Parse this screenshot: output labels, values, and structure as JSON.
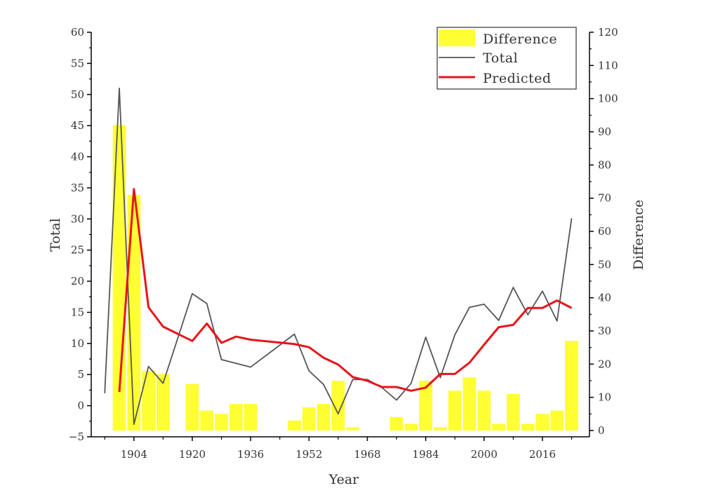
{
  "chart_data": {
    "type": "bar+line",
    "xlabel": "Year",
    "ylabel_left": "Total",
    "ylabel_right": "Difference",
    "xlim": [
      1892.3,
      2028.9
    ],
    "ylim_left": [
      -5,
      60
    ],
    "ylim_right": [
      0,
      120
    ],
    "x_ticks": [
      1904,
      1920,
      1936,
      1952,
      1968,
      1984,
      2000,
      2016
    ],
    "y_left_ticks": [
      -5,
      0,
      5,
      10,
      15,
      20,
      25,
      30,
      35,
      40,
      45,
      50,
      55,
      60
    ],
    "y_right_ticks": [
      0,
      10,
      20,
      30,
      40,
      50,
      60,
      70,
      80,
      90,
      100,
      110,
      120
    ],
    "legend": {
      "placement": "top-right",
      "entries": [
        "Difference",
        "Total",
        "Predicted"
      ]
    },
    "colors": {
      "Difference": "#ffff33",
      "Total": "#555555",
      "Predicted": "#e8141a"
    },
    "series": [
      {
        "name": "Difference",
        "kind": "bar",
        "axis": "right",
        "x": [
          1900,
          1904,
          1908,
          1912,
          1920,
          1924,
          1928,
          1932,
          1936,
          1948,
          1952,
          1956,
          1960,
          1964,
          1976,
          1980,
          1984,
          1988,
          1992,
          1996,
          2000,
          2004,
          2008,
          2012,
          2016,
          2020,
          2024
        ],
        "values": [
          92,
          71,
          18,
          17,
          14,
          6,
          5,
          8,
          8,
          3,
          7,
          8,
          15,
          1,
          4,
          2,
          15,
          1,
          12,
          16,
          12,
          2,
          11,
          2,
          5,
          6,
          27
        ]
      },
      {
        "name": "Total",
        "kind": "line",
        "axis": "left",
        "x": [
          1896,
          1900,
          1904,
          1908,
          1912,
          1920,
          1924,
          1928,
          1932,
          1936,
          1948,
          1952,
          1956,
          1960,
          1964,
          1968,
          1972,
          1976,
          1980,
          1984,
          1988,
          1992,
          1996,
          2000,
          2004,
          2008,
          2012,
          2016,
          2020,
          2024
        ],
        "values": [
          2,
          51,
          -3,
          6.3,
          3.6,
          18,
          16.4,
          7.4,
          6.8,
          6.2,
          11.5,
          5.6,
          3.4,
          -1.3,
          4.2,
          4.2,
          2.9,
          0.9,
          3.6,
          11,
          4.5,
          11.4,
          15.8,
          16.3,
          13.7,
          19,
          14.6,
          18.4,
          13.6,
          30.1
        ]
      },
      {
        "name": "Predicted",
        "kind": "line",
        "axis": "left",
        "x": [
          1900,
          1904,
          1908,
          1912,
          1920,
          1924,
          1928,
          1932,
          1936,
          1948,
          1952,
          1956,
          1960,
          1964,
          1968,
          1972,
          1976,
          1980,
          1984,
          1988,
          1992,
          1996,
          2000,
          2004,
          2008,
          2012,
          2016,
          2020,
          2024
        ],
        "values": [
          2.2,
          34.8,
          15.8,
          12.7,
          10.4,
          13.2,
          10.1,
          11.1,
          10.6,
          9.9,
          9.4,
          7.7,
          6.6,
          4.6,
          4.0,
          3.0,
          3.0,
          2.4,
          2.9,
          5.1,
          5.1,
          6.9,
          9.8,
          12.6,
          13.0,
          15.7,
          15.7,
          16.9,
          15.7
        ]
      }
    ]
  }
}
